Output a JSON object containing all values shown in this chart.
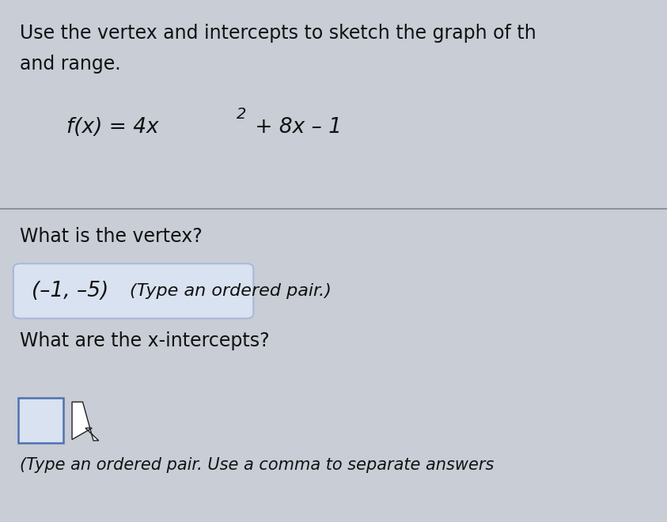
{
  "background_color": "#c8cdd6",
  "divider_color": "#888888",
  "instruction_line1": "Use the vertex and intercepts to sketch the graph of th",
  "instruction_line2": "and range.",
  "func_part1": "f(x) = 4x",
  "func_sup": "2",
  "func_part2": " + 8x – 1",
  "question1": "What is the vertex?",
  "answer1": "(–1, –5)",
  "answer1_hint": "(Type an ordered pair.)",
  "answer1_box_color": "#aab8d8",
  "answer1_box_fill": "#d8e2f0",
  "question2": "What are the x-intercepts?",
  "small_box_color": "#5070b0",
  "small_box_fill": "#d8e2f0",
  "bottom_hint": "(Type an ordered pair. Use a comma to separate answers",
  "cursor_color": "#222222",
  "text_color": "#111111",
  "font_size_instruction": 17,
  "font_size_function": 19,
  "font_size_question": 17,
  "font_size_answer": 19,
  "font_size_hint": 15
}
